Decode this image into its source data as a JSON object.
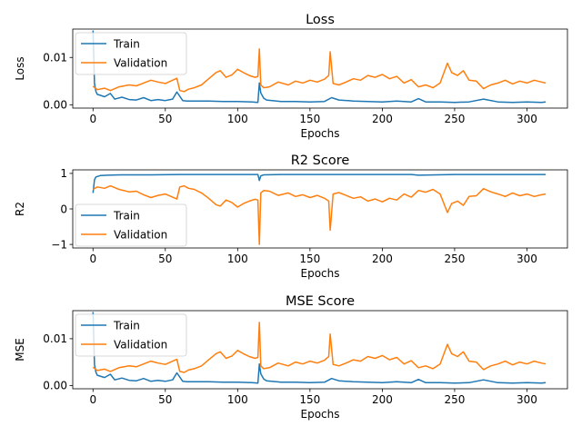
{
  "chart_data": [
    {
      "type": "line",
      "title": "Loss",
      "xlabel": "Epochs",
      "ylabel": "Loss",
      "xlim": [
        -14,
        328
      ],
      "ylim": [
        -0.0007,
        0.016
      ],
      "xticks": [
        0,
        50,
        100,
        150,
        200,
        250,
        300
      ],
      "xtick_labels": [
        "0",
        "50",
        "100",
        "150",
        "200",
        "250",
        "300"
      ],
      "yticks": [
        0.0,
        0.01
      ],
      "ytick_labels": [
        "0.00",
        "0.01"
      ],
      "legend": {
        "position": "upper-left",
        "entries": [
          "Train",
          "Validation"
        ]
      },
      "series": [
        {
          "name": "Train",
          "color": "#1f77b4",
          "x": [
            0,
            1,
            2,
            3,
            5,
            8,
            12,
            15,
            20,
            25,
            30,
            35,
            40,
            45,
            50,
            55,
            58,
            60,
            62,
            65,
            70,
            80,
            90,
            100,
            110,
            114,
            115,
            116,
            118,
            120,
            130,
            140,
            150,
            160,
            165,
            170,
            180,
            190,
            200,
            210,
            220,
            225,
            230,
            240,
            250,
            260,
            270,
            280,
            290,
            300,
            310,
            313
          ],
          "y": [
            0.0157,
            0.0045,
            0.0028,
            0.0022,
            0.002,
            0.0017,
            0.0024,
            0.0012,
            0.0016,
            0.0011,
            0.001,
            0.0015,
            0.0009,
            0.0011,
            0.0009,
            0.0012,
            0.0027,
            0.0018,
            0.0009,
            0.0008,
            0.0008,
            0.0008,
            0.0007,
            0.0007,
            0.0006,
            0.0005,
            0.0046,
            0.0025,
            0.0014,
            0.001,
            0.0007,
            0.0007,
            0.0006,
            0.0007,
            0.0015,
            0.001,
            0.0008,
            0.0007,
            0.0006,
            0.0008,
            0.0006,
            0.0013,
            0.0006,
            0.0006,
            0.0005,
            0.0006,
            0.0012,
            0.0006,
            0.0005,
            0.0006,
            0.0005,
            0.0006
          ]
        },
        {
          "name": "Validation",
          "color": "#ff7f0e",
          "x": [
            0,
            3,
            8,
            12,
            18,
            25,
            30,
            35,
            40,
            45,
            50,
            55,
            58,
            60,
            63,
            66,
            70,
            75,
            80,
            85,
            88,
            92,
            96,
            100,
            104,
            108,
            112,
            114,
            115,
            116,
            118,
            122,
            128,
            135,
            140,
            145,
            150,
            155,
            160,
            163,
            164,
            166,
            170,
            175,
            180,
            185,
            190,
            195,
            200,
            205,
            210,
            215,
            220,
            225,
            230,
            235,
            240,
            245,
            248,
            252,
            256,
            260,
            265,
            270,
            275,
            280,
            285,
            290,
            295,
            300,
            305,
            310,
            313
          ],
          "y": [
            0.0039,
            0.0032,
            0.0035,
            0.003,
            0.0038,
            0.0042,
            0.004,
            0.0046,
            0.0052,
            0.0048,
            0.0045,
            0.0052,
            0.0056,
            0.003,
            0.0028,
            0.0033,
            0.0036,
            0.0042,
            0.0055,
            0.0068,
            0.0072,
            0.0058,
            0.0063,
            0.0075,
            0.0068,
            0.0062,
            0.0058,
            0.006,
            0.0118,
            0.0042,
            0.0036,
            0.0038,
            0.0048,
            0.0042,
            0.005,
            0.0046,
            0.0052,
            0.0048,
            0.0054,
            0.0062,
            0.0112,
            0.0045,
            0.0042,
            0.0048,
            0.0055,
            0.0052,
            0.0062,
            0.0058,
            0.0064,
            0.0055,
            0.006,
            0.0046,
            0.0053,
            0.0038,
            0.0042,
            0.0036,
            0.0046,
            0.0088,
            0.0068,
            0.0062,
            0.0072,
            0.0052,
            0.005,
            0.0034,
            0.0042,
            0.0046,
            0.0052,
            0.0044,
            0.005,
            0.0046,
            0.0052,
            0.0048,
            0.0046
          ]
        }
      ]
    },
    {
      "type": "line",
      "title": "R2 Score",
      "xlabel": "Epochs",
      "ylabel": "R2",
      "xlim": [
        -14,
        328
      ],
      "ylim": [
        -1.1,
        1.1
      ],
      "xticks": [
        0,
        50,
        100,
        150,
        200,
        250,
        300
      ],
      "xtick_labels": [
        "0",
        "50",
        "100",
        "150",
        "200",
        "250",
        "300"
      ],
      "yticks": [
        -1,
        0,
        1
      ],
      "ytick_labels": [
        "−1",
        "0",
        "1"
      ],
      "legend": {
        "position": "lower-left",
        "entries": [
          "Train",
          "Validation"
        ]
      },
      "series": [
        {
          "name": "Train",
          "color": "#1f77b4",
          "x": [
            0,
            1,
            2,
            5,
            10,
            20,
            40,
            60,
            80,
            100,
            114,
            115,
            116,
            118,
            130,
            150,
            170,
            200,
            220,
            225,
            250,
            270,
            300,
            313
          ],
          "y": [
            0.45,
            0.82,
            0.9,
            0.94,
            0.95,
            0.96,
            0.96,
            0.97,
            0.97,
            0.97,
            0.97,
            0.8,
            0.93,
            0.96,
            0.97,
            0.97,
            0.97,
            0.97,
            0.97,
            0.95,
            0.97,
            0.97,
            0.97,
            0.97
          ]
        },
        {
          "name": "Validation",
          "color": "#ff7f0e",
          "x": [
            0,
            3,
            8,
            12,
            18,
            25,
            30,
            35,
            40,
            45,
            50,
            55,
            58,
            60,
            63,
            66,
            70,
            75,
            80,
            85,
            88,
            92,
            96,
            100,
            104,
            108,
            112,
            114,
            115,
            116,
            118,
            122,
            128,
            135,
            140,
            145,
            150,
            155,
            160,
            163,
            164,
            166,
            170,
            175,
            180,
            185,
            190,
            195,
            200,
            205,
            210,
            215,
            220,
            225,
            230,
            235,
            240,
            245,
            248,
            252,
            256,
            260,
            265,
            270,
            275,
            280,
            285,
            290,
            295,
            300,
            305,
            310,
            313
          ],
          "y": [
            0.55,
            0.62,
            0.58,
            0.65,
            0.55,
            0.48,
            0.5,
            0.4,
            0.32,
            0.38,
            0.42,
            0.33,
            0.28,
            0.62,
            0.65,
            0.58,
            0.55,
            0.45,
            0.3,
            0.12,
            0.08,
            0.25,
            0.18,
            0.05,
            0.15,
            0.22,
            0.27,
            0.25,
            -1.0,
            0.45,
            0.52,
            0.5,
            0.38,
            0.45,
            0.35,
            0.4,
            0.32,
            0.38,
            0.3,
            0.22,
            -0.6,
            0.42,
            0.46,
            0.38,
            0.3,
            0.34,
            0.22,
            0.28,
            0.2,
            0.3,
            0.25,
            0.42,
            0.33,
            0.52,
            0.47,
            0.55,
            0.42,
            -0.1,
            0.15,
            0.22,
            0.1,
            0.35,
            0.37,
            0.57,
            0.48,
            0.42,
            0.35,
            0.45,
            0.37,
            0.42,
            0.35,
            0.4,
            0.42
          ]
        }
      ]
    },
    {
      "type": "line",
      "title": "MSE Score",
      "xlabel": "Epochs",
      "ylabel": "MSE",
      "xlim": [
        -14,
        328
      ],
      "ylim": [
        -0.0007,
        0.016
      ],
      "xticks": [
        0,
        50,
        100,
        150,
        200,
        250,
        300
      ],
      "xtick_labels": [
        "0",
        "50",
        "100",
        "150",
        "200",
        "250",
        "300"
      ],
      "yticks": [
        0.0,
        0.01
      ],
      "ytick_labels": [
        "0.00",
        "0.01"
      ],
      "legend": {
        "position": "upper-left",
        "entries": [
          "Train",
          "Validation"
        ]
      },
      "series": [
        {
          "name": "Train",
          "color": "#1f77b4",
          "x": [
            0,
            1,
            2,
            3,
            5,
            8,
            12,
            15,
            20,
            25,
            30,
            35,
            40,
            45,
            50,
            55,
            58,
            60,
            62,
            65,
            70,
            80,
            90,
            100,
            110,
            114,
            115,
            116,
            118,
            120,
            130,
            140,
            150,
            160,
            165,
            170,
            180,
            190,
            200,
            210,
            220,
            225,
            230,
            240,
            250,
            260,
            270,
            280,
            290,
            300,
            310,
            313
          ],
          "y": [
            0.0157,
            0.0045,
            0.0028,
            0.0022,
            0.002,
            0.0017,
            0.0024,
            0.0012,
            0.0016,
            0.0011,
            0.001,
            0.0015,
            0.0009,
            0.0011,
            0.0009,
            0.0012,
            0.0027,
            0.0018,
            0.0009,
            0.0008,
            0.0008,
            0.0008,
            0.0007,
            0.0007,
            0.0006,
            0.0005,
            0.0046,
            0.0025,
            0.0014,
            0.001,
            0.0007,
            0.0007,
            0.0006,
            0.0007,
            0.0015,
            0.001,
            0.0008,
            0.0007,
            0.0006,
            0.0008,
            0.0006,
            0.0013,
            0.0006,
            0.0006,
            0.0005,
            0.0006,
            0.0012,
            0.0006,
            0.0005,
            0.0006,
            0.0005,
            0.0006
          ]
        },
        {
          "name": "Validation",
          "color": "#ff7f0e",
          "x": [
            0,
            3,
            8,
            12,
            18,
            25,
            30,
            35,
            40,
            45,
            50,
            55,
            58,
            60,
            63,
            66,
            70,
            75,
            80,
            85,
            88,
            92,
            96,
            100,
            104,
            108,
            112,
            114,
            115,
            116,
            118,
            122,
            128,
            135,
            140,
            145,
            150,
            155,
            160,
            163,
            164,
            166,
            170,
            175,
            180,
            185,
            190,
            195,
            200,
            205,
            210,
            215,
            220,
            225,
            230,
            235,
            240,
            245,
            248,
            252,
            256,
            260,
            265,
            270,
            275,
            280,
            285,
            290,
            295,
            300,
            305,
            310,
            313
          ],
          "y": [
            0.0039,
            0.0032,
            0.0035,
            0.003,
            0.0038,
            0.0042,
            0.004,
            0.0046,
            0.0052,
            0.0048,
            0.0045,
            0.0052,
            0.0056,
            0.003,
            0.0028,
            0.0033,
            0.0036,
            0.0042,
            0.0055,
            0.0068,
            0.0072,
            0.0058,
            0.0063,
            0.0075,
            0.0068,
            0.0062,
            0.0058,
            0.006,
            0.0135,
            0.0042,
            0.0036,
            0.0038,
            0.0048,
            0.0042,
            0.005,
            0.0046,
            0.0052,
            0.0048,
            0.0054,
            0.0062,
            0.011,
            0.0045,
            0.0042,
            0.0048,
            0.0055,
            0.0052,
            0.0062,
            0.0058,
            0.0064,
            0.0055,
            0.006,
            0.0046,
            0.0053,
            0.0038,
            0.0042,
            0.0036,
            0.0046,
            0.0088,
            0.0068,
            0.0062,
            0.0072,
            0.0052,
            0.005,
            0.0034,
            0.0042,
            0.0046,
            0.0052,
            0.0044,
            0.005,
            0.0046,
            0.0052,
            0.0048,
            0.0046
          ]
        }
      ]
    }
  ]
}
